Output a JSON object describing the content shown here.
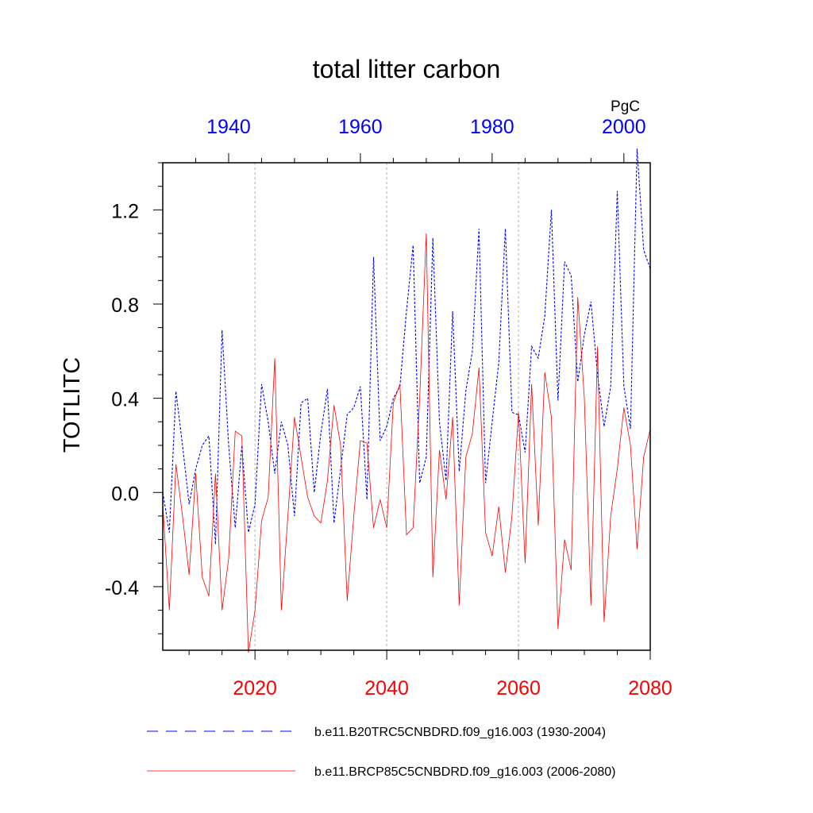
{
  "chart_data": {
    "type": "line",
    "title": "total litter carbon",
    "units": "PgC",
    "ylabel": "TOTLITC",
    "xlabel": "",
    "ylim": [
      -0.67,
      1.4
    ],
    "yticks": [
      -0.4,
      0.0,
      0.4,
      0.8,
      1.2
    ],
    "ytick_labels": [
      "-0.4",
      "0.0",
      "0.4",
      "0.8",
      "1.2"
    ],
    "bottom_axis": {
      "range": [
        2006,
        2080
      ],
      "ticks": [
        2020,
        2040,
        2060,
        2080
      ],
      "tick_labels": [
        "2020",
        "2040",
        "2060",
        "2080"
      ],
      "color": "#ff0000"
    },
    "top_axis": {
      "range": [
        1930,
        2004
      ],
      "ticks": [
        1940,
        1960,
        1980,
        2000
      ],
      "tick_labels": [
        "1940",
        "1960",
        "1980",
        "2000"
      ],
      "color": "#0000ff"
    },
    "gridlines_at": [
      2020,
      2040,
      2060
    ],
    "series": [
      {
        "name": "b.e11.B20TRC5CNBDRD.f09_g16.003 (1930-2004)",
        "axis": "top",
        "color": "#0000ff",
        "style": "dashed",
        "x": [
          1930,
          1931,
          1932,
          1933,
          1934,
          1935,
          1936,
          1937,
          1938,
          1939,
          1940,
          1941,
          1942,
          1943,
          1944,
          1945,
          1946,
          1947,
          1948,
          1949,
          1950,
          1951,
          1952,
          1953,
          1954,
          1955,
          1956,
          1957,
          1958,
          1959,
          1960,
          1961,
          1962,
          1963,
          1964,
          1965,
          1966,
          1967,
          1968,
          1969,
          1970,
          1971,
          1972,
          1973,
          1974,
          1975,
          1976,
          1977,
          1978,
          1979,
          1980,
          1981,
          1982,
          1983,
          1984,
          1985,
          1986,
          1987,
          1988,
          1989,
          1990,
          1991,
          1992,
          1993,
          1994,
          1995,
          1996,
          1997,
          1998,
          1999,
          2000,
          2001,
          2002,
          2003,
          2004
        ],
        "values": [
          0.0,
          -0.17,
          0.43,
          0.2,
          -0.05,
          0.1,
          0.2,
          0.24,
          -0.22,
          0.69,
          0.2,
          -0.15,
          0.2,
          -0.17,
          -0.05,
          0.46,
          0.3,
          0.08,
          0.3,
          0.2,
          -0.1,
          0.38,
          0.4,
          0.0,
          0.25,
          0.44,
          -0.13,
          0.1,
          0.33,
          0.36,
          0.45,
          -0.03,
          1.0,
          0.22,
          0.28,
          0.4,
          0.45,
          0.77,
          1.05,
          0.04,
          0.15,
          1.08,
          0.3,
          0.05,
          0.77,
          0.09,
          0.43,
          0.6,
          1.12,
          0.04,
          0.3,
          0.55,
          1.12,
          0.34,
          0.33,
          0.17,
          0.62,
          0.57,
          0.75,
          1.2,
          0.39,
          0.98,
          0.92,
          0.47,
          0.67,
          0.81,
          0.5,
          0.28,
          0.45,
          1.28,
          0.45,
          0.27,
          1.46,
          1.03,
          0.95
        ]
      },
      {
        "name": "b.e11.BRCP85C5CNBDRD.f09_g16.003 (2006-2080)",
        "axis": "bottom",
        "color": "#ff0000",
        "style": "solid",
        "x": [
          2006,
          2007,
          2008,
          2009,
          2010,
          2011,
          2012,
          2013,
          2014,
          2015,
          2016,
          2017,
          2018,
          2019,
          2020,
          2021,
          2022,
          2023,
          2024,
          2025,
          2026,
          2027,
          2028,
          2029,
          2030,
          2031,
          2032,
          2033,
          2034,
          2035,
          2036,
          2037,
          2038,
          2039,
          2040,
          2041,
          2042,
          2043,
          2044,
          2045,
          2046,
          2047,
          2048,
          2049,
          2050,
          2051,
          2052,
          2053,
          2054,
          2055,
          2056,
          2057,
          2058,
          2059,
          2060,
          2061,
          2062,
          2063,
          2064,
          2065,
          2066,
          2067,
          2068,
          2069,
          2070,
          2071,
          2072,
          2073,
          2074,
          2075,
          2076,
          2077,
          2078,
          2079,
          2080
        ],
        "values": [
          -0.05,
          -0.5,
          0.12,
          -0.1,
          -0.35,
          0.08,
          -0.36,
          -0.44,
          0.08,
          -0.5,
          -0.28,
          0.26,
          0.24,
          -0.68,
          -0.5,
          -0.12,
          -0.02,
          0.57,
          -0.5,
          -0.1,
          0.32,
          0.15,
          -0.02,
          -0.1,
          -0.13,
          0.05,
          0.37,
          0.2,
          -0.46,
          -0.1,
          0.22,
          0.21,
          -0.15,
          -0.03,
          -0.15,
          0.38,
          0.46,
          -0.18,
          -0.15,
          0.4,
          1.1,
          -0.36,
          0.18,
          -0.03,
          0.32,
          -0.48,
          0.15,
          0.25,
          0.53,
          -0.17,
          -0.27,
          -0.06,
          -0.34,
          -0.1,
          0.34,
          -0.3,
          0.46,
          -0.14,
          0.51,
          0.32,
          -0.58,
          -0.2,
          -0.33,
          0.83,
          0.4,
          -0.48,
          0.62,
          -0.55,
          -0.1,
          0.1,
          0.36,
          0.2,
          -0.24,
          0.15,
          0.27
        ]
      }
    ],
    "legend": {
      "position": "bottom",
      "entries": [
        "b.e11.B20TRC5CNBDRD.f09_g16.003 (1930-2004)",
        "b.e11.BRCP85C5CNBDRD.f09_g16.003 (2006-2080)"
      ]
    }
  }
}
